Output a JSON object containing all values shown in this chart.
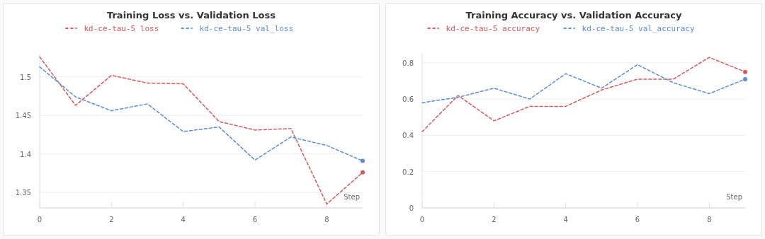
{
  "chart_data": [
    {
      "type": "line",
      "title": "Training Loss vs. Validation Loss",
      "xlabel": "Step",
      "x": [
        0,
        1,
        2,
        3,
        4,
        5,
        6,
        7,
        8,
        9
      ],
      "xlim": [
        0,
        9
      ],
      "xticks": [
        0,
        2,
        4,
        6,
        8
      ],
      "ylim": [
        1.33,
        1.53
      ],
      "yticks": [
        1.35,
        1.4,
        1.45,
        1.5
      ],
      "grid": "y",
      "legend": "top",
      "line_style": "dashed",
      "marker": "none",
      "series": [
        {
          "name": "kd-ce-tau-5 loss",
          "color": "#d9575c",
          "values": [
            1.526,
            1.463,
            1.502,
            1.492,
            1.491,
            1.442,
            1.431,
            1.433,
            1.335,
            1.376
          ]
        },
        {
          "name": "kd-ce-tau-5 val_loss",
          "color": "#5b8ddb",
          "values": [
            1.513,
            1.474,
            1.456,
            1.465,
            1.429,
            1.435,
            1.392,
            1.422,
            1.411,
            1.391
          ]
        }
      ]
    },
    {
      "type": "line",
      "title": "Training Accuracy vs. Validation Accuracy",
      "xlabel": "Step",
      "x": [
        0,
        1,
        2,
        3,
        4,
        5,
        6,
        7,
        8,
        9
      ],
      "xlim": [
        0,
        9
      ],
      "xticks": [
        0,
        2,
        4,
        6,
        8
      ],
      "ylim": [
        0,
        0.85
      ],
      "yticks": [
        0,
        0.2,
        0.4,
        0.6,
        0.8
      ],
      "grid": "y",
      "legend": "top",
      "line_style": "dashed",
      "marker": "none",
      "series": [
        {
          "name": "kd-ce-tau-5 accuracy",
          "color": "#d9575c",
          "values": [
            0.42,
            0.62,
            0.48,
            0.56,
            0.56,
            0.65,
            0.71,
            0.71,
            0.83,
            0.75
          ]
        },
        {
          "name": "kd-ce-tau-5 val_accuracy",
          "color": "#5b8ddb",
          "values": [
            0.58,
            0.61,
            0.66,
            0.6,
            0.74,
            0.66,
            0.79,
            0.69,
            0.63,
            0.71
          ]
        }
      ]
    }
  ]
}
